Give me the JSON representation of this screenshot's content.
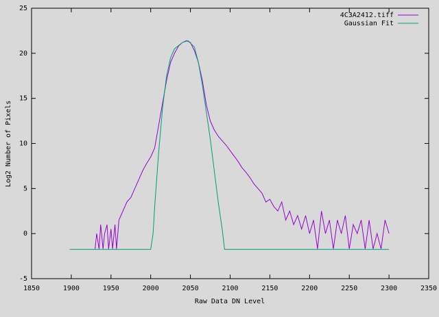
{
  "chart_data": {
    "type": "line",
    "xlabel": "Raw Data DN Level",
    "ylabel": "Log2 Number of Pixels",
    "xlim": [
      1850,
      2350
    ],
    "xticks": [
      1850,
      1900,
      1950,
      2000,
      2050,
      2100,
      2150,
      2200,
      2250,
      2300,
      2350
    ],
    "ylim": [
      -5,
      25
    ],
    "yticks": [
      -5,
      0,
      5,
      10,
      15,
      20,
      25
    ],
    "legend": "top-right",
    "series": [
      {
        "name": "4C3A2412.tiff",
        "color": "#9400d3",
        "x": [
          1930,
          1932,
          1935,
          1937,
          1940,
          1942,
          1945,
          1947,
          1950,
          1952,
          1955,
          1957,
          1960,
          1965,
          1970,
          1975,
          1980,
          1985,
          1990,
          1995,
          2000,
          2005,
          2010,
          2015,
          2020,
          2025,
          2030,
          2035,
          2040,
          2045,
          2050,
          2055,
          2060,
          2065,
          2070,
          2075,
          2080,
          2085,
          2090,
          2095,
          2100,
          2105,
          2110,
          2115,
          2120,
          2125,
          2130,
          2135,
          2140,
          2145,
          2150,
          2155,
          2160,
          2165,
          2170,
          2175,
          2180,
          2185,
          2190,
          2195,
          2200,
          2205,
          2210,
          2215,
          2220,
          2225,
          2230,
          2235,
          2240,
          2245,
          2250,
          2255,
          2260,
          2265,
          2270,
          2275,
          2280,
          2285,
          2290,
          2295,
          2300
        ],
        "values": [
          -1.7,
          0,
          -1.7,
          1,
          -1.7,
          0,
          1,
          -1.7,
          0.5,
          -1.7,
          1,
          -1.7,
          1.5,
          2.5,
          3.5,
          4,
          5,
          6,
          7,
          7.8,
          8.5,
          9.5,
          12,
          14.5,
          17,
          19,
          20,
          20.8,
          21.2,
          21.4,
          21.2,
          20.3,
          19,
          17,
          14.3,
          12.5,
          11.5,
          10.8,
          10.3,
          9.8,
          9.2,
          8.6,
          8,
          7.3,
          6.8,
          6.2,
          5.5,
          5,
          4.5,
          3.5,
          3.8,
          3,
          2.5,
          3.5,
          1.5,
          2.5,
          1,
          2,
          0.5,
          2,
          0,
          1.5,
          -1.7,
          2.5,
          0,
          1.5,
          -1.7,
          1.5,
          0,
          2,
          -1.7,
          1,
          0,
          1.5,
          -1.7,
          1.5,
          -1.7,
          0,
          -1.7,
          1.5,
          0
        ]
      },
      {
        "name": "Gaussian Fit",
        "color": "#009e73",
        "x": [
          1898,
          2000,
          2003,
          2005,
          2010,
          2015,
          2020,
          2025,
          2030,
          2040,
          2047,
          2055,
          2060,
          2065,
          2070,
          2075,
          2080,
          2085,
          2090,
          2093,
          2300
        ],
        "values": [
          -1.75,
          -1.75,
          0,
          3,
          9,
          14,
          17.5,
          19.5,
          20.5,
          21.2,
          21.4,
          20.7,
          19,
          16.5,
          13.5,
          10.5,
          7,
          3.5,
          0.5,
          -1.75,
          -1.75
        ]
      }
    ]
  }
}
